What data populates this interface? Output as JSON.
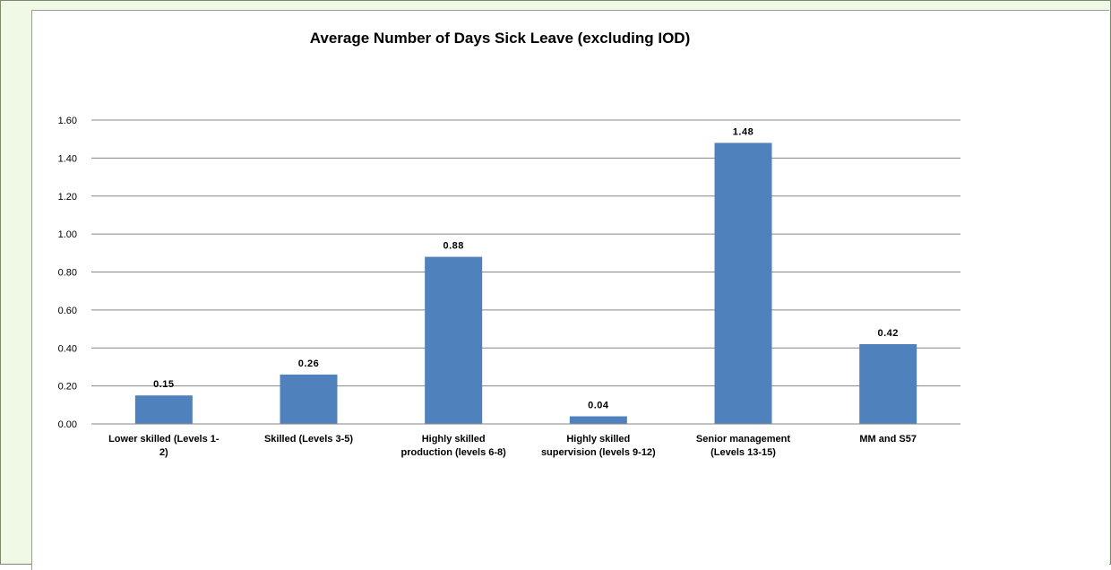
{
  "chart_data": {
    "type": "bar",
    "title": "Average Number of Days Sick Leave (excluding IOD)",
    "xlabel": "",
    "ylabel": "",
    "categories": [
      [
        "Lower skilled (Levels 1-",
        "2)"
      ],
      [
        "Skilled (Levels 3-5)"
      ],
      [
        "Highly skilled",
        "production (levels 6-8)"
      ],
      [
        "Highly skilled",
        "supervision (levels 9-12)"
      ],
      [
        "Senior management",
        "(Levels 13-15)"
      ],
      [
        "MM and S57"
      ]
    ],
    "values": [
      0.15,
      0.26,
      0.88,
      0.04,
      1.48,
      0.42
    ],
    "data_labels": [
      "0.15",
      "0.26",
      "0.88",
      "0.04",
      "1.48",
      "0.42"
    ],
    "ylim": [
      0,
      1.6
    ],
    "yticks": [
      0.0,
      0.2,
      0.4,
      0.6,
      0.8,
      1.0,
      1.2,
      1.4,
      1.6
    ],
    "ytick_labels": [
      "0.00",
      "0.20",
      "0.40",
      "0.60",
      "0.80",
      "1.00",
      "1.20",
      "1.40",
      "1.60"
    ],
    "grid": true,
    "legend": "none",
    "colors": {
      "bar": "#4f81bd",
      "grid": "#868686",
      "frame_background": "#f0f9e6"
    }
  }
}
